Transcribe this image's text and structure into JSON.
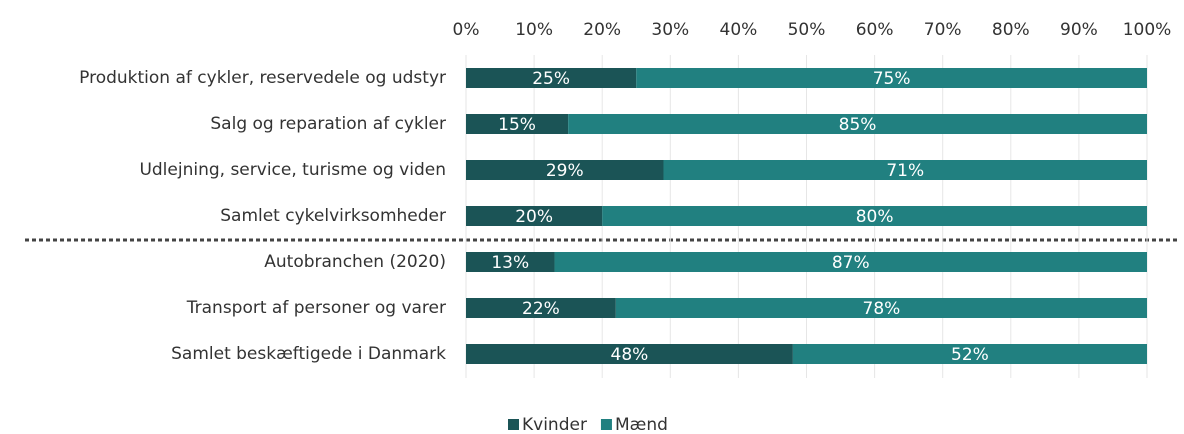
{
  "chart_data": {
    "type": "stacked_bar_horizontal",
    "categories": [
      "Produktion af cykler, reservedele og udstyr",
      "Salg og reparation af cykler",
      "Udlejning, service, turisme og viden",
      "Samlet cykelvirksomheder",
      "Autobranchen (2020)",
      "Transport af personer og varer",
      "Samlet beskæftigede i Danmark"
    ],
    "series": [
      {
        "name": "Kvinder",
        "color": "#1b5456",
        "values": [
          25,
          15,
          29,
          20,
          13,
          22,
          48
        ],
        "value_labels": [
          "25%",
          "15%",
          "29%",
          "20%",
          "13%",
          "22%",
          "48%"
        ]
      },
      {
        "name": "Mænd",
        "color": "#218080",
        "values": [
          75,
          85,
          71,
          80,
          87,
          78,
          52
        ],
        "value_labels": [
          "75%",
          "85%",
          "71%",
          "80%",
          "87%",
          "78%",
          "52%"
        ]
      }
    ],
    "xlim": [
      0,
      100
    ],
    "xticks": [
      {
        "value": 0,
        "label": "0%"
      },
      {
        "value": 10,
        "label": "10%"
      },
      {
        "value": 20,
        "label": "20%"
      },
      {
        "value": 30,
        "label": "30%"
      },
      {
        "value": 40,
        "label": "40%"
      },
      {
        "value": 50,
        "label": "50%"
      },
      {
        "value": 60,
        "label": "60%"
      },
      {
        "value": 70,
        "label": "70%"
      },
      {
        "value": 80,
        "label": "80%"
      },
      {
        "value": 90,
        "label": "90%"
      },
      {
        "value": 100,
        "label": "100%"
      }
    ],
    "grid": true,
    "legend": "bottom"
  }
}
